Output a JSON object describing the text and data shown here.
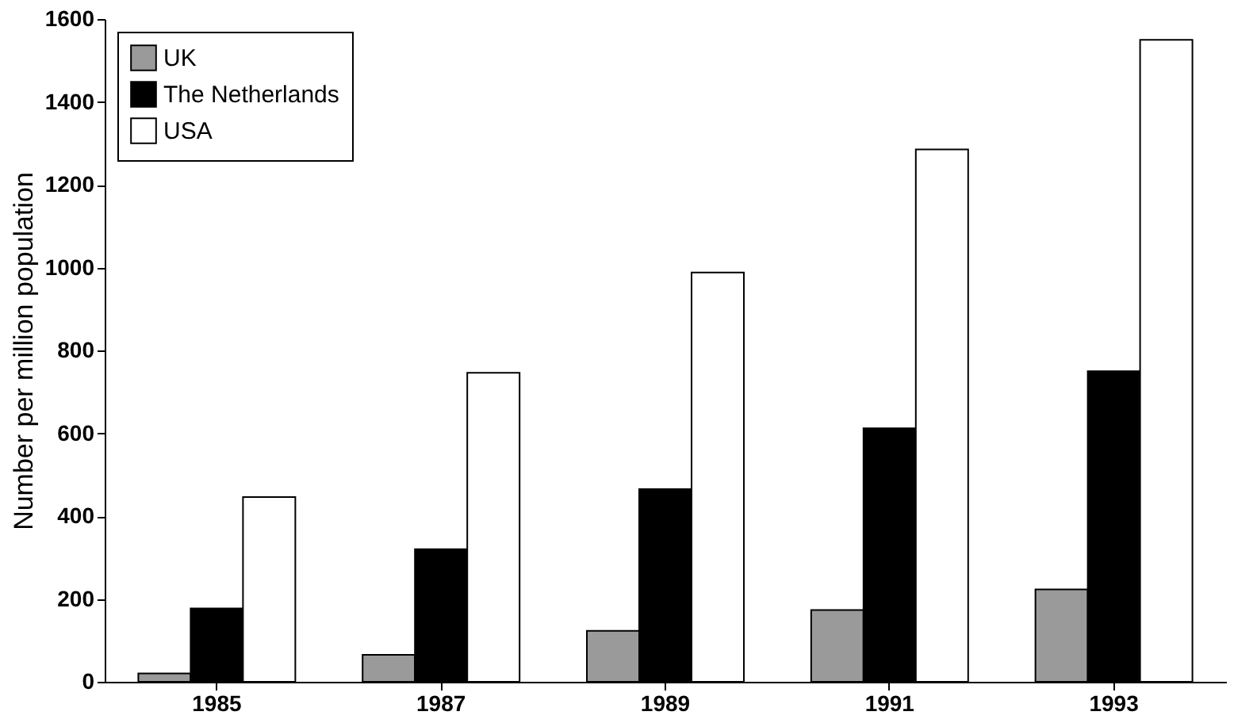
{
  "chart_data": {
    "type": "bar",
    "ylabel": "Number per million population",
    "categories": [
      "1985",
      "1987",
      "1989",
      "1991",
      "1993"
    ],
    "series": [
      {
        "name": "UK",
        "color": "#9a9a9a",
        "values": [
          20,
          65,
          123,
          173,
          223
        ]
      },
      {
        "name": "The Netherlands",
        "color": "#000000",
        "values": [
          177,
          320,
          465,
          612,
          750
        ]
      },
      {
        "name": "USA",
        "color": "#ffffff",
        "values": [
          446,
          746,
          988,
          1285,
          1550
        ]
      }
    ],
    "ylim": [
      0,
      1600
    ],
    "yticks": [
      0,
      200,
      400,
      600,
      800,
      1000,
      1200,
      1400,
      1600
    ],
    "grid": false,
    "legend": "top left"
  }
}
